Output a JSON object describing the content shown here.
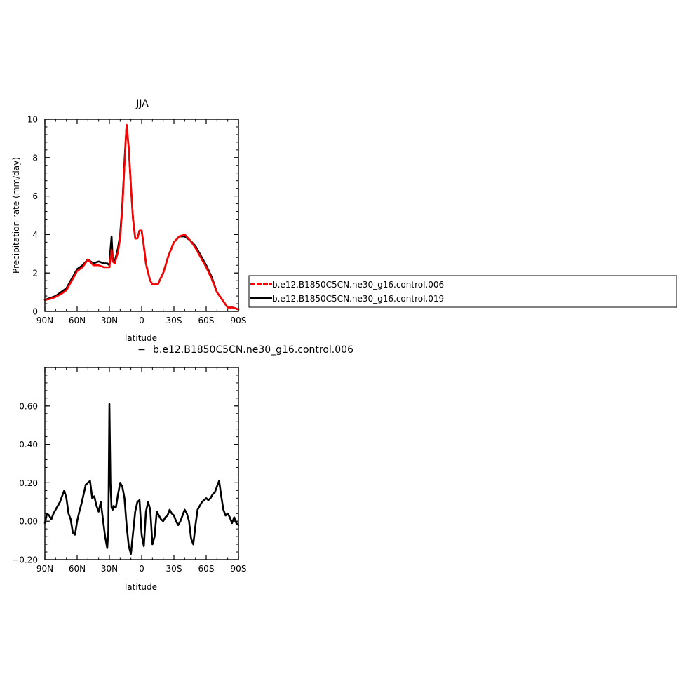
{
  "chart_data": [
    {
      "type": "line",
      "title": "JJA",
      "xlabel": "latitude",
      "ylabel": "Precipitation rate (mm/day)",
      "xlim": [
        90,
        -90
      ],
      "ylim": [
        0,
        10
      ],
      "x_ticks": [
        {
          "value": 90,
          "label": "90N"
        },
        {
          "value": 60,
          "label": "60N"
        },
        {
          "value": 30,
          "label": "30N"
        },
        {
          "value": 0,
          "label": "0"
        },
        {
          "value": -30,
          "label": "30S"
        },
        {
          "value": -60,
          "label": "60S"
        },
        {
          "value": -90,
          "label": "90S"
        }
      ],
      "y_ticks": [
        {
          "value": 0,
          "label": "0"
        },
        {
          "value": 2,
          "label": "2"
        },
        {
          "value": 4,
          "label": "4"
        },
        {
          "value": 6,
          "label": "6"
        },
        {
          "value": 8,
          "label": "8"
        },
        {
          "value": 10,
          "label": "10"
        }
      ],
      "legend_position": "outside-right",
      "series": [
        {
          "name": "b.e12.B1850C5CN.ne30_g16.control.019",
          "color": "#000000",
          "dash": "solid",
          "x": [
            90,
            85,
            80,
            75,
            70,
            65,
            60,
            55,
            50,
            45,
            40,
            35,
            32,
            30,
            29,
            28,
            27,
            25,
            22,
            20,
            18,
            16,
            14,
            12,
            10,
            8,
            6,
            4,
            2,
            0,
            -2,
            -4,
            -6,
            -8,
            -10,
            -15,
            -20,
            -25,
            -30,
            -35,
            -40,
            -45,
            -50,
            -55,
            -60,
            -65,
            -70,
            -75,
            -80,
            -85,
            -90
          ],
          "y": [
            0.6,
            0.7,
            0.8,
            1.0,
            1.2,
            1.7,
            2.2,
            2.4,
            2.7,
            2.5,
            2.6,
            2.5,
            2.5,
            2.4,
            3.2,
            3.9,
            2.8,
            2.6,
            3.3,
            4.0,
            5.5,
            7.8,
            9.7,
            8.5,
            6.5,
            4.8,
            3.8,
            3.8,
            4.2,
            4.2,
            3.4,
            2.5,
            2.0,
            1.6,
            1.4,
            1.4,
            2.0,
            2.9,
            3.6,
            3.9,
            3.9,
            3.7,
            3.4,
            2.9,
            2.4,
            1.8,
            1.0,
            0.6,
            0.2,
            0.2,
            0.1
          ]
        },
        {
          "name": "b.e12.B1850C5CN.ne30_g16.control.006",
          "color": "#ff0000",
          "dash": "dashed",
          "x": [
            90,
            85,
            80,
            75,
            70,
            65,
            60,
            55,
            50,
            45,
            40,
            35,
            32,
            30,
            29,
            28,
            27,
            25,
            22,
            20,
            18,
            16,
            14,
            12,
            10,
            8,
            6,
            4,
            2,
            0,
            -2,
            -4,
            -6,
            -8,
            -10,
            -15,
            -20,
            -25,
            -30,
            -35,
            -40,
            -45,
            -50,
            -55,
            -60,
            -65,
            -70,
            -75,
            -80,
            -85,
            -90
          ],
          "y": [
            0.6,
            0.65,
            0.75,
            0.9,
            1.1,
            1.6,
            2.1,
            2.3,
            2.7,
            2.4,
            2.4,
            2.3,
            2.3,
            2.3,
            2.7,
            3.2,
            2.6,
            2.5,
            3.1,
            3.8,
            5.3,
            7.6,
            9.7,
            8.5,
            6.5,
            4.8,
            3.8,
            3.8,
            4.2,
            4.2,
            3.4,
            2.5,
            2.0,
            1.6,
            1.4,
            1.4,
            2.0,
            2.9,
            3.6,
            3.9,
            4.0,
            3.7,
            3.3,
            2.8,
            2.3,
            1.7,
            1.0,
            0.6,
            0.2,
            0.2,
            0.1
          ]
        }
      ]
    },
    {
      "type": "line",
      "title": "b.e12.B1850C5CN.ne30_g16.control.006",
      "title_prefix": "−",
      "xlabel": "latitude",
      "ylabel": "",
      "xlim": [
        90,
        -90
      ],
      "ylim": [
        -0.2,
        0.8
      ],
      "x_ticks": [
        {
          "value": 90,
          "label": "90N"
        },
        {
          "value": 60,
          "label": "60N"
        },
        {
          "value": 30,
          "label": "30N"
        },
        {
          "value": 0,
          "label": "0"
        },
        {
          "value": -30,
          "label": "30S"
        },
        {
          "value": -60,
          "label": "60S"
        },
        {
          "value": -90,
          "label": "90S"
        }
      ],
      "y_ticks": [
        {
          "value": -0.2,
          "label": "−0.20"
        },
        {
          "value": 0.0,
          "label": "0.00"
        },
        {
          "value": 0.2,
          "label": "0.20"
        },
        {
          "value": 0.4,
          "label": "0.40"
        },
        {
          "value": 0.6,
          "label": "0.60"
        }
      ],
      "series": [
        {
          "name": "",
          "color": "#000000",
          "dash": "solid",
          "x": [
            90,
            88,
            86,
            84,
            82,
            80,
            78,
            76,
            74,
            72,
            70,
            68,
            66,
            64,
            62,
            60,
            58,
            56,
            54,
            52,
            50,
            48,
            46,
            44,
            42,
            40,
            38,
            36,
            34,
            32,
            31,
            30,
            29,
            28,
            27,
            26,
            24,
            22,
            20,
            18,
            16,
            14,
            12,
            10,
            8,
            6,
            4,
            2,
            0,
            -2,
            -4,
            -6,
            -8,
            -10,
            -12,
            -14,
            -16,
            -18,
            -20,
            -22,
            -24,
            -26,
            -28,
            -30,
            -32,
            -34,
            -36,
            -38,
            -40,
            -42,
            -44,
            -46,
            -48,
            -50,
            -52,
            -54,
            -56,
            -58,
            -60,
            -62,
            -64,
            -66,
            -68,
            -70,
            -72,
            -74,
            -76,
            -78,
            -80,
            -82,
            -84,
            -86,
            -88,
            -90
          ],
          "y": [
            -0.01,
            0.04,
            0.03,
            0.01,
            0.04,
            0.06,
            0.08,
            0.1,
            0.13,
            0.16,
            0.12,
            0.04,
            0.01,
            -0.06,
            -0.07,
            0.0,
            0.05,
            0.09,
            0.14,
            0.19,
            0.2,
            0.21,
            0.12,
            0.13,
            0.08,
            0.05,
            0.1,
            0.01,
            -0.08,
            -0.14,
            -0.05,
            0.61,
            0.2,
            0.07,
            0.06,
            0.08,
            0.07,
            0.14,
            0.2,
            0.18,
            0.12,
            -0.02,
            -0.13,
            -0.17,
            -0.06,
            0.05,
            0.1,
            0.11,
            -0.07,
            -0.13,
            0.05,
            0.1,
            0.06,
            -0.12,
            -0.08,
            0.05,
            0.03,
            0.01,
            0.0,
            0.02,
            0.03,
            0.06,
            0.04,
            0.03,
            0.0,
            -0.02,
            0.0,
            0.03,
            0.06,
            0.04,
            0.0,
            -0.09,
            -0.12,
            -0.02,
            0.06,
            0.08,
            0.1,
            0.11,
            0.12,
            0.11,
            0.12,
            0.14,
            0.15,
            0.18,
            0.21,
            0.13,
            0.06,
            0.03,
            0.04,
            0.02,
            -0.01,
            0.02,
            -0.01,
            -0.02
          ]
        }
      ]
    }
  ]
}
